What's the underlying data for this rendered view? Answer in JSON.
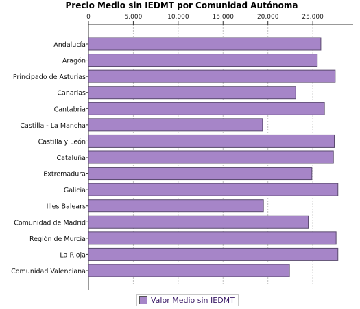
{
  "chart_data": {
    "type": "bar",
    "orientation": "horizontal",
    "title": "Precio Medio sin IEDMT por Comunidad Autónoma",
    "xlabel": "",
    "ylabel": "",
    "xlim": [
      0,
      29500
    ],
    "xticks": [
      0,
      5000,
      10000,
      15000,
      20000,
      25000
    ],
    "xtick_labels": [
      "0",
      "5.000",
      "10.000",
      "15.000",
      "20.000",
      "25.000"
    ],
    "axis_position": "top",
    "grid": true,
    "legend_position": "bottom",
    "categories": [
      "Andalucía",
      "Aragón",
      "Principado de Asturias",
      "Canarias",
      "Cantabria",
      "Castilla - La Mancha",
      "Castilla y León",
      "Cataluña",
      "Extremadura",
      "Galicia",
      "Illes Balears",
      "Comunidad de Madrid",
      "Región de Murcia",
      "La Rioja",
      "Comunidad Valenciana"
    ],
    "series": [
      {
        "name": "Valor Medio sin IEDMT",
        "color": "#a685c8",
        "values": [
          25900,
          25500,
          27500,
          23100,
          26300,
          19400,
          27400,
          27300,
          24900,
          27800,
          19500,
          24500,
          27600,
          27800,
          22400
        ]
      }
    ]
  }
}
